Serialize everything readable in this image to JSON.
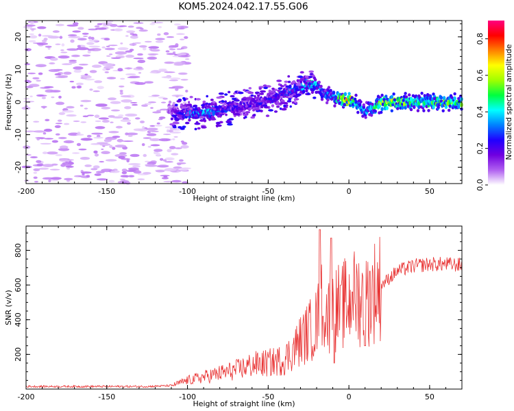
{
  "title": "KOM5.2024.042.17.55.G06",
  "chart_data": [
    {
      "type": "heatmap",
      "xlabel": "Height of straight line (km)",
      "ylabel": "Frequency (Hz)",
      "xlim": [
        -200,
        70
      ],
      "ylim": [
        -25,
        25
      ],
      "xticks": [
        -200,
        -150,
        -100,
        -50,
        0,
        50
      ],
      "yticks": [
        -20,
        -10,
        0,
        10,
        20
      ],
      "colorbar": {
        "label": "Normalized spectral amplitude",
        "range": [
          0,
          0.9
        ],
        "ticks": [
          0.0,
          0.2,
          0.4,
          0.6,
          0.8
        ],
        "colormap": [
          "#ffffff",
          "#b060f0",
          "#7000e0",
          "#2000ff",
          "#0080ff",
          "#00ffff",
          "#00ff40",
          "#a0ff00",
          "#ffff00",
          "#ff8000",
          "#ff0000",
          "#ff0080"
        ]
      },
      "ridge": {
        "x": [
          -110,
          -100,
          -90,
          -80,
          -70,
          -60,
          -52,
          -45,
          -38,
          -30,
          -25,
          -20,
          -16,
          -10,
          -5,
          0,
          5,
          10,
          15,
          20,
          25,
          35,
          45,
          55,
          60,
          70
        ],
        "y": [
          -2.5,
          -3.5,
          -3.2,
          -2.5,
          -1.5,
          -0.5,
          0.5,
          1.5,
          3,
          4.5,
          5.5,
          5,
          2.5,
          1.5,
          1,
          0.8,
          -0.5,
          -2.5,
          -1.5,
          -0.5,
          0,
          0,
          0,
          0,
          0,
          0
        ],
        "amplitude": [
          0.12,
          0.3,
          0.4,
          0.3,
          0.22,
          0.2,
          0.22,
          0.25,
          0.28,
          0.35,
          0.45,
          0.4,
          0.3,
          0.35,
          0.5,
          0.75,
          0.45,
          0.35,
          0.42,
          0.55,
          0.65,
          0.52,
          0.45,
          0.5,
          0.55,
          0.5
        ]
      },
      "noise_floor_amplitude": 0.02,
      "noise_region_x": [
        -200,
        -110
      ]
    },
    {
      "type": "line",
      "xlabel": "Height of straight line (km)",
      "ylabel": "SNR (v/v)",
      "xlim": [
        -200,
        70
      ],
      "ylim": [
        0,
        940
      ],
      "xticks": [
        -200,
        -150,
        -100,
        -50,
        0,
        50
      ],
      "yticks": [
        200,
        400,
        600,
        800
      ],
      "color": "#e83030",
      "series": [
        {
          "x": [
            -200,
            -175,
            -150,
            -125,
            -110,
            -100,
            -90,
            -80,
            -70,
            -60,
            -50,
            -40,
            -35,
            -30,
            -25,
            -20,
            -17,
            -15,
            -13,
            -10,
            -5,
            0,
            5,
            10,
            15,
            20,
            25,
            30,
            40,
            50,
            60,
            70
          ],
          "y": [
            15,
            15,
            15,
            15,
            20,
            50,
            70,
            90,
            110,
            140,
            150,
            170,
            220,
            280,
            330,
            380,
            480,
            500,
            420,
            450,
            480,
            500,
            540,
            500,
            560,
            600,
            640,
            680,
            710,
            720,
            720,
            715
          ],
          "spikes": [
            [
              -18,
              920
            ],
            [
              -16,
              420
            ],
            [
              -11,
              870
            ],
            [
              -9,
              150
            ],
            [
              -5,
              600
            ],
            [
              2,
              560
            ],
            [
              10,
              250
            ],
            [
              13,
              680
            ]
          ]
        }
      ]
    }
  ]
}
